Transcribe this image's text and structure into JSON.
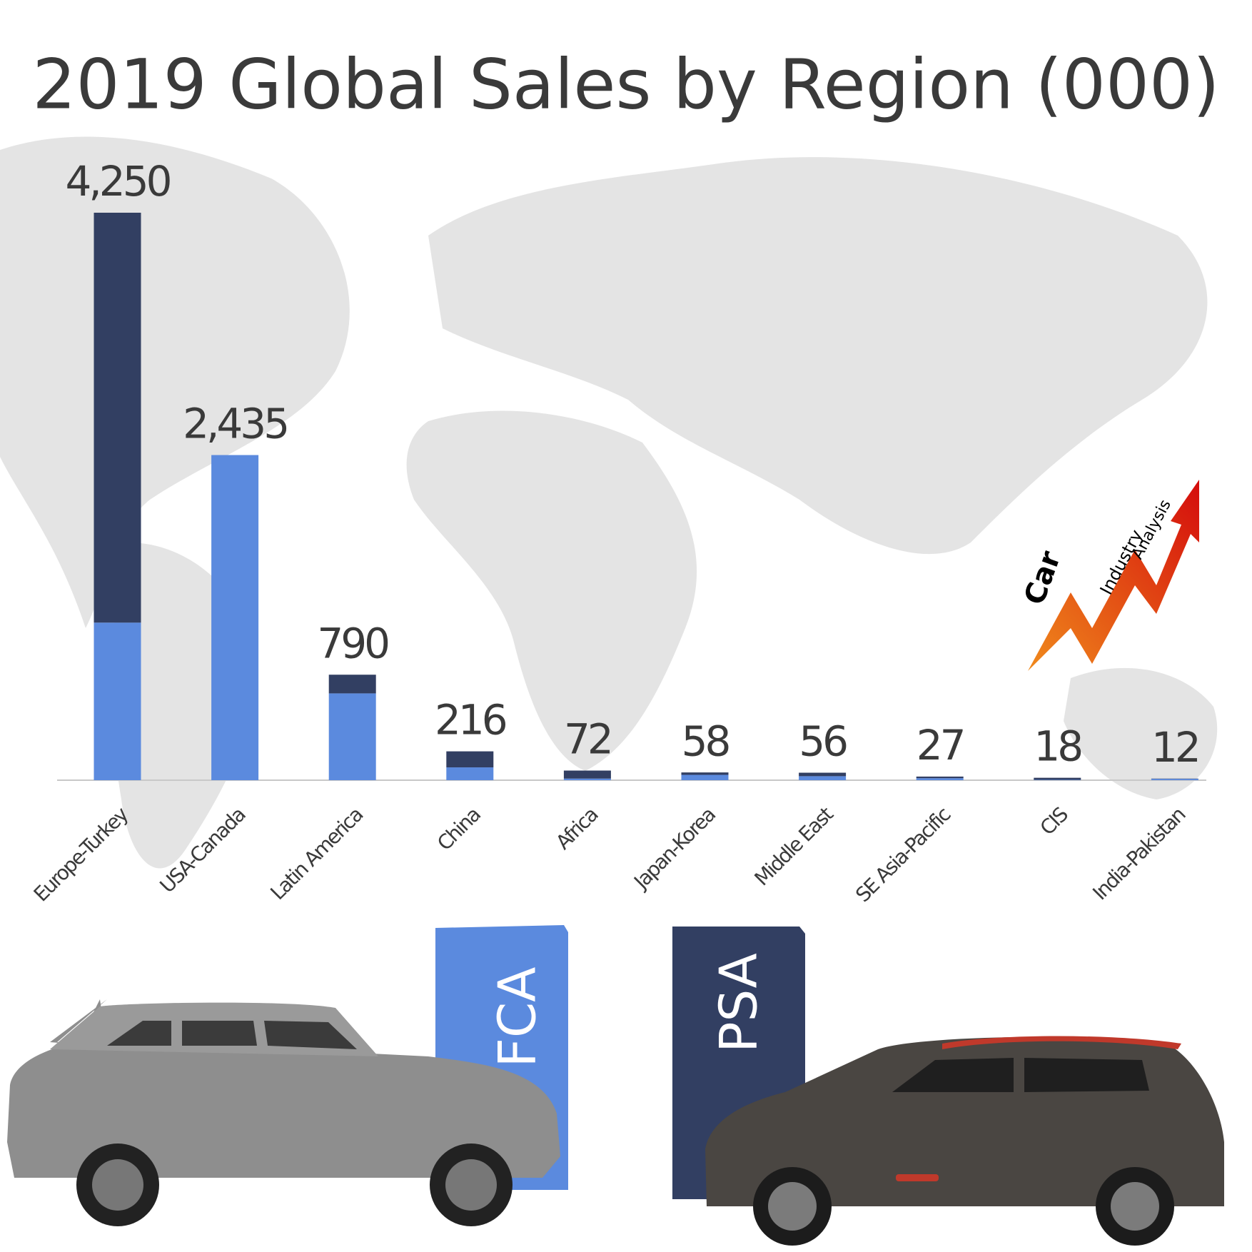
{
  "chart_data": {
    "type": "stacked_bar",
    "title": "2019 Global Sales by Region (000)",
    "categories": [
      "Europe-Turkey",
      "USA-Canada",
      "Latin America",
      "China",
      "Africa",
      "Japan-Korea",
      "Middle East",
      "SE Asia-Pacific",
      "CIS",
      "India-Pakistan"
    ],
    "series": [
      {
        "name": "FCA",
        "color": "#5b8ade",
        "values": [
          1180,
          2435,
          650,
          96,
          12,
          40,
          30,
          15,
          3,
          10
        ]
      },
      {
        "name": "PSA",
        "color": "#323f62",
        "values": [
          3070,
          0,
          140,
          120,
          60,
          18,
          26,
          12,
          15,
          2
        ]
      }
    ],
    "totals": [
      4250,
      2435,
      790,
      216,
      72,
      58,
      56,
      27,
      18,
      12
    ],
    "total_labels": [
      "4,250",
      "2,435",
      "790",
      "216",
      "72",
      "58",
      "56",
      "27",
      "18",
      "12"
    ]
  },
  "logo": {
    "words": [
      "Car",
      "Industry",
      "Analysis"
    ]
  }
}
